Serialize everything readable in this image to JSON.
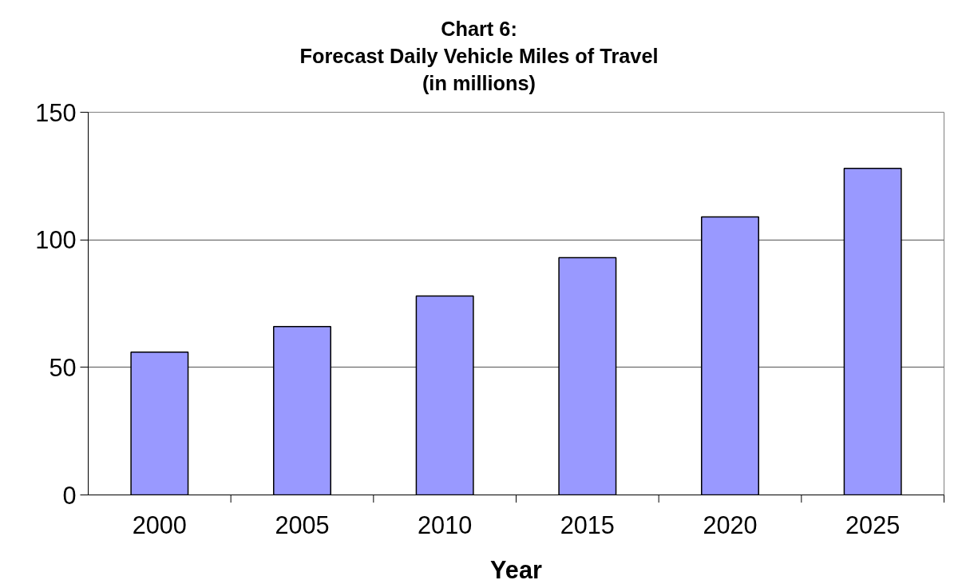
{
  "chart_data": {
    "type": "bar",
    "title": "Chart 6:\nForecast Daily Vehicle Miles of Travel\n(in millions)",
    "xlabel": "Year",
    "categories": [
      "2000",
      "2005",
      "2010",
      "2015",
      "2020",
      "2025"
    ],
    "values": [
      56,
      66,
      78,
      93,
      109,
      128
    ],
    "color": "#9999ff",
    "ylim": [
      0,
      150
    ],
    "yticks": [
      0,
      50,
      100,
      150
    ],
    "grid": "y"
  }
}
